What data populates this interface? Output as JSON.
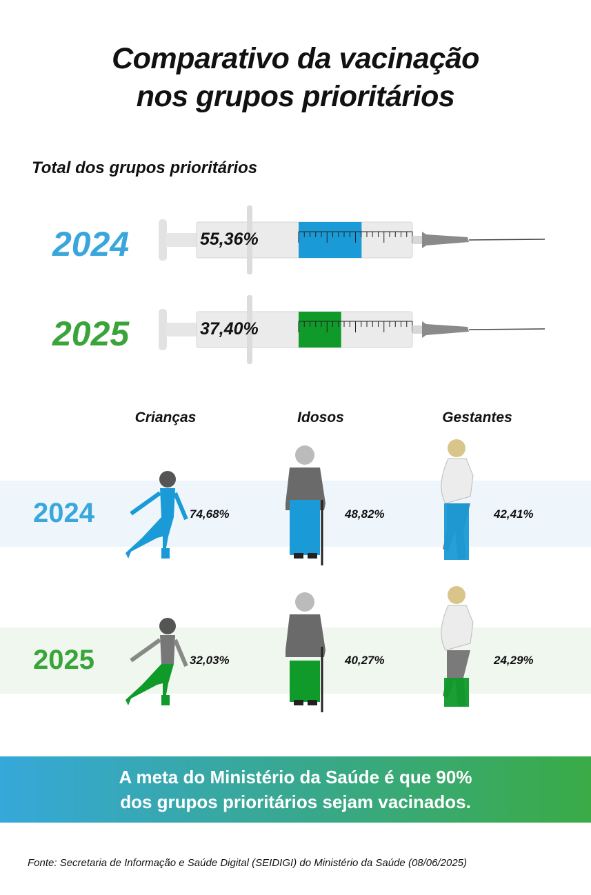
{
  "title_line1": "Comparativo da vacinação",
  "title_line2": "nos grupos prioritários",
  "subtitle": "Total dos grupos prioritários",
  "colors": {
    "y2024": "#3aa7dc",
    "y2025": "#3aa43a",
    "fill2024": "#1a9ad6",
    "fill2025": "#0f9a2a",
    "band2024": "#eef6fb",
    "band2025": "#eff7ee"
  },
  "chart_data": {
    "type": "bar",
    "title": "Comparativo da vacinação nos grupos prioritários",
    "total": {
      "label": "Total dos grupos prioritários",
      "years": [
        {
          "year": "2024",
          "value": 55.36,
          "label": "55,36%"
        },
        {
          "year": "2025",
          "value": 37.4,
          "label": "37,40%"
        }
      ]
    },
    "categories": [
      "Crianças",
      "Idosos",
      "Gestantes"
    ],
    "series": [
      {
        "name": "2024",
        "values": [
          74.68,
          48.82,
          42.41
        ],
        "labels": [
          "74,68%",
          "48,82%",
          "42,41%"
        ]
      },
      {
        "name": "2025",
        "values": [
          32.03,
          40.27,
          24.29
        ],
        "labels": [
          "32,03%",
          "40,27%",
          "24,29%"
        ]
      }
    ],
    "ylim": [
      0,
      100
    ]
  },
  "banner_line1": "A meta do Ministério da Saúde é que 90%",
  "banner_line2": "dos grupos prioritários sejam vacinados.",
  "source": "Fonte: Secretaria de Informação e Saúde Digital (SEIDIGI) do Ministério da Saúde (08/06/2025)"
}
